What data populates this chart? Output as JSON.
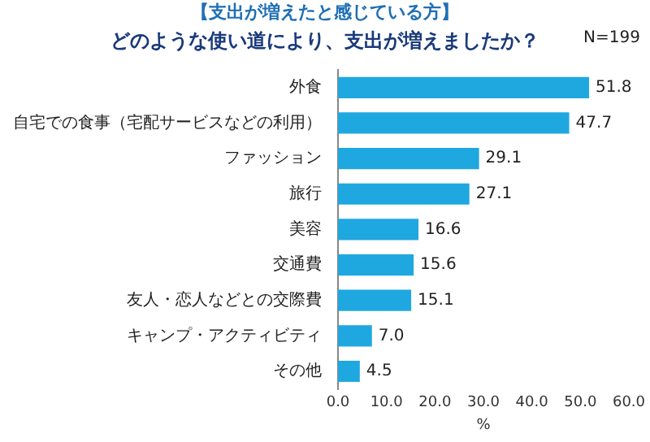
{
  "chart_data": {
    "type": "bar",
    "orientation": "horizontal",
    "subtitle": "【支出が増えたと感じている方】",
    "title": "どのような使い道により、支出が増えましたか？",
    "annotations": [
      "N=199"
    ],
    "xlabel": "%",
    "categories": [
      "外食",
      "自宅での食事（宅配サービスなどの利用）",
      "ファッション",
      "旅行",
      "美容",
      "交通費",
      "友人・恋人などとの交際費",
      "キャンプ・アクティビティ",
      "その他"
    ],
    "values": [
      51.8,
      47.7,
      29.1,
      27.1,
      16.6,
      15.6,
      15.1,
      7.0,
      4.5
    ],
    "value_labels": [
      "51.8",
      "47.7",
      "29.1",
      "27.1",
      "16.6",
      "15.6",
      "15.1",
      "7.0",
      "4.5"
    ],
    "color": "#1fa8e0",
    "xlim": [
      0,
      60
    ],
    "xticks": [
      {
        "value": 0,
        "label": "0.0"
      },
      {
        "value": 10,
        "label": "10.0"
      },
      {
        "value": 20,
        "label": "20.0"
      },
      {
        "value": 30,
        "label": "30.0"
      },
      {
        "value": 40,
        "label": "40.0"
      },
      {
        "value": 50,
        "label": "50.0"
      },
      {
        "value": 60,
        "label": "60.0"
      }
    ],
    "grid": false,
    "legend": false
  }
}
